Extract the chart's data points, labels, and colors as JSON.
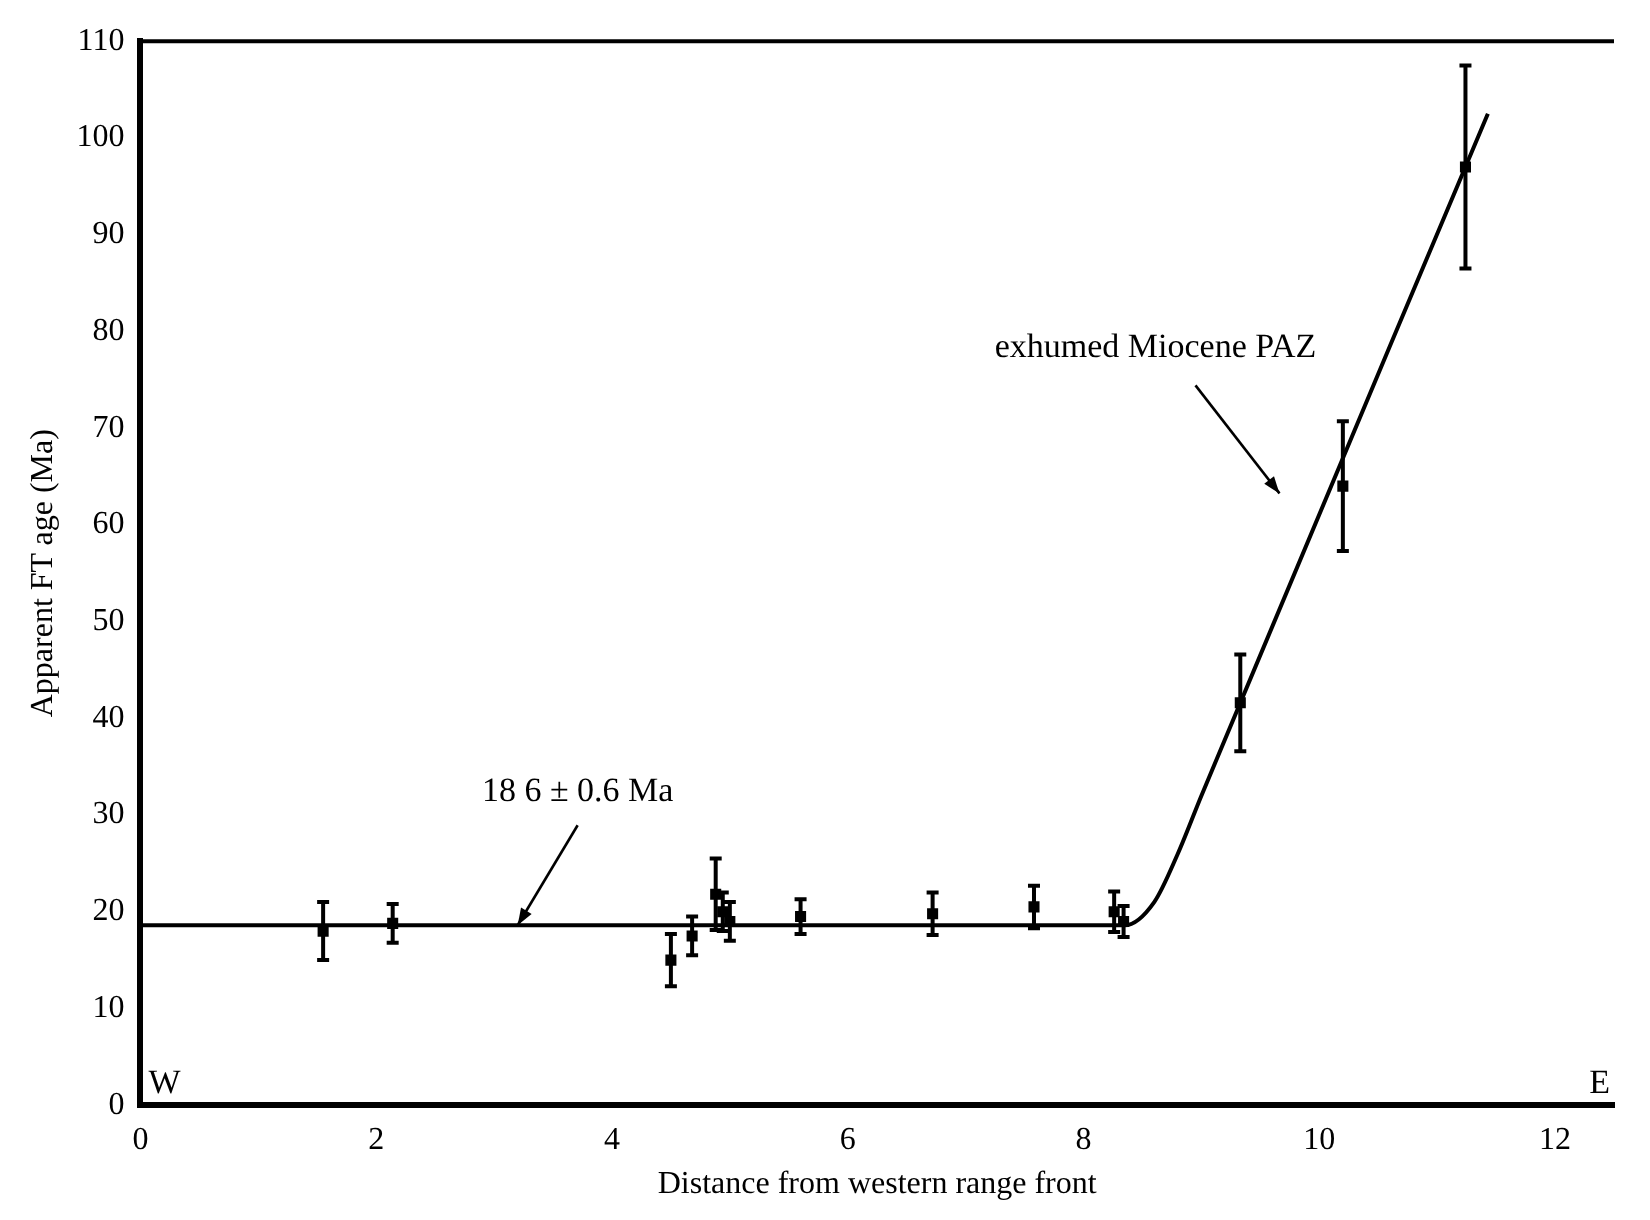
{
  "chart_data": {
    "type": "scatter",
    "xlabel": "Distance from western range front",
    "ylabel": "Apparent FT age (Ma)",
    "xlim": [
      0,
      12.5
    ],
    "xticks": [
      0,
      2,
      4,
      6,
      8,
      10,
      12
    ],
    "ylim": [
      0,
      110
    ],
    "yticks": [
      0,
      10,
      20,
      30,
      40,
      50,
      60,
      70,
      80,
      90,
      100,
      110
    ],
    "grid": false,
    "legend": false,
    "marker": "square",
    "series": [
      {
        "color": "#000000",
        "x": [
          1.55,
          2.14,
          4.5,
          4.68,
          4.88,
          4.94,
          5.0,
          5.6,
          6.72,
          7.58,
          8.26,
          8.34,
          9.33,
          10.2,
          11.24
        ],
        "values": [
          18,
          18.8,
          15,
          17.5,
          21.8,
          20,
          19,
          19.5,
          19.8,
          20.5,
          20,
          19,
          41.6,
          64,
          97
        ],
        "errors": [
          3,
          2,
          2.7,
          2,
          3.7,
          2,
          2,
          1.8,
          2.2,
          2.2,
          2.1,
          1.6,
          5,
          6.7,
          10.5
        ]
      },
      {
        "type": "line",
        "color": "#000000",
        "marker": "none",
        "x": [
          0,
          8.35,
          8.6,
          8.8,
          9.0,
          11.43
        ],
        "values": [
          18.6,
          18.6,
          21,
          26,
          32,
          102.5
        ]
      }
    ],
    "annotations": [
      {
        "text": "18 6 ± 0.6 Ma",
        "x": 3.2,
        "y": 18.6
      },
      "exhumed Miocene PAZ",
      "W",
      "E"
    ]
  }
}
